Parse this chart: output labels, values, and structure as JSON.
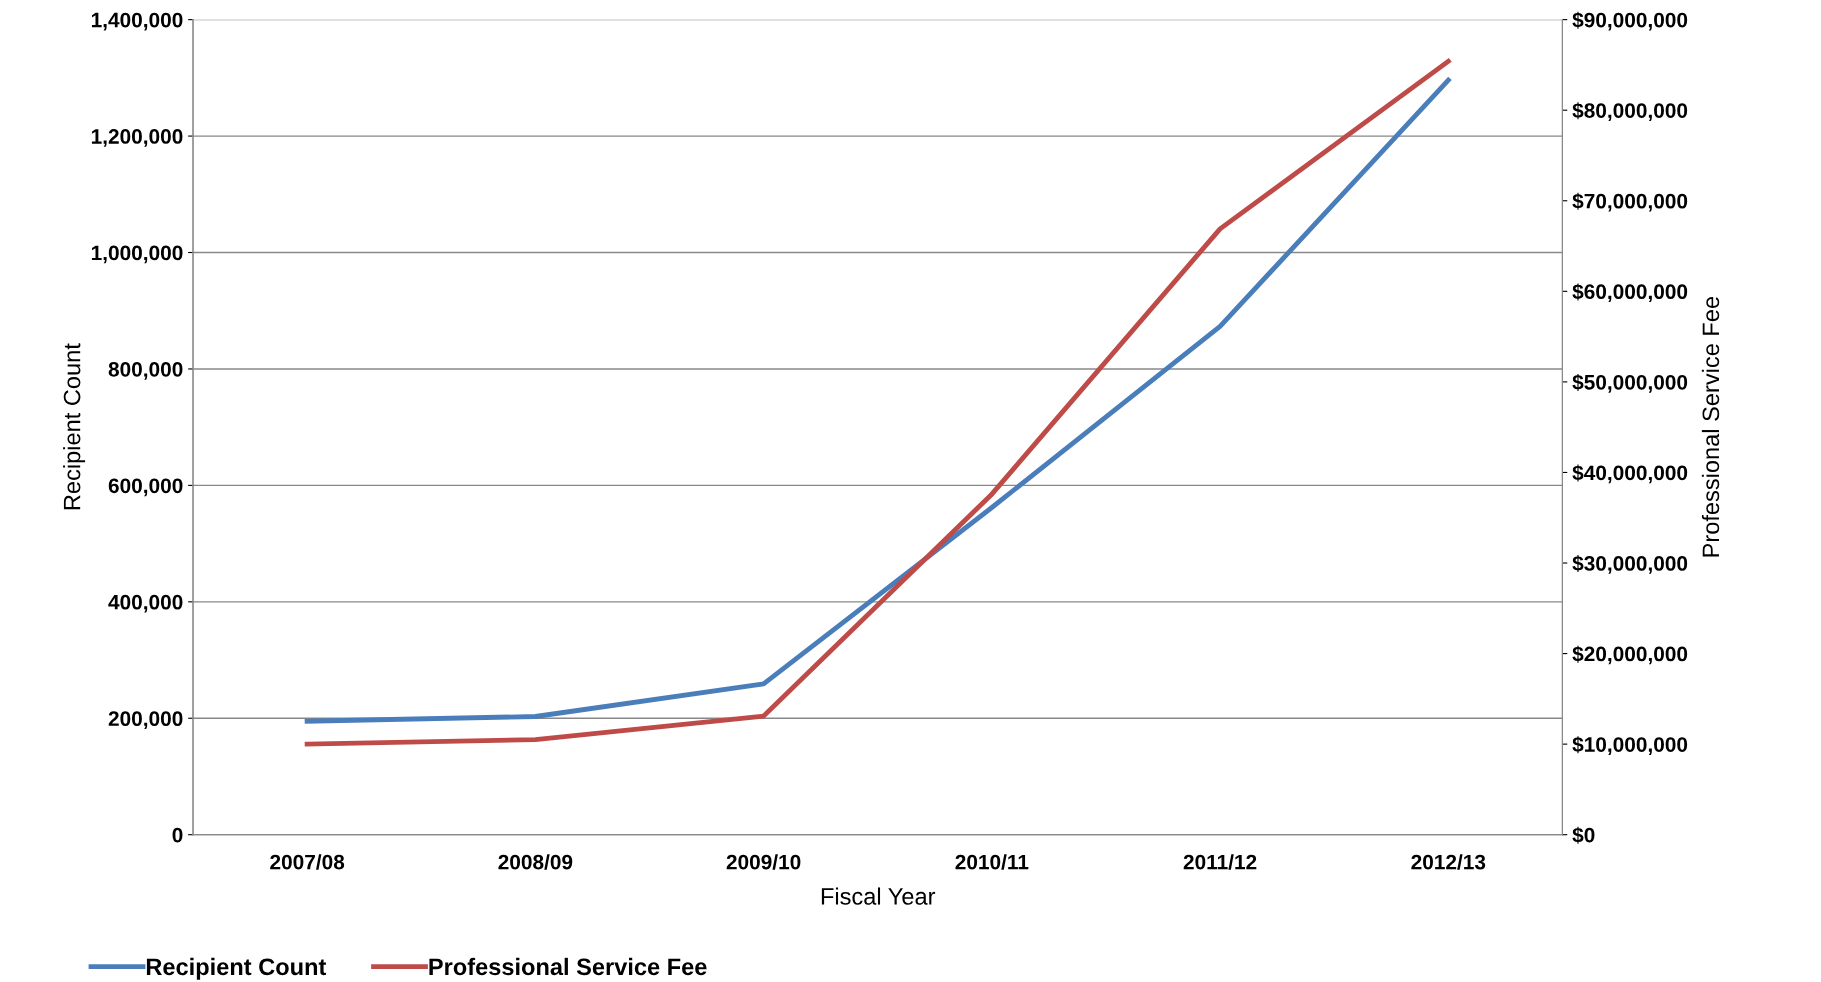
{
  "chart_data": {
    "type": "line",
    "xlabel": "Fiscal Year",
    "ylabel": "Recipient Count",
    "y2label": "Professional Service Fee",
    "categories": [
      "2007/08",
      "2008/09",
      "2009/10",
      "2010/11",
      "2011/12",
      "2012/13"
    ],
    "series": [
      {
        "name": "Recipient Count",
        "color": "#4a7ebb",
        "values": [
          195000,
          203000,
          259000,
          562000,
          873000,
          1296000
        ]
      },
      {
        "name": "Professional Service Fee",
        "color": "#be4b48",
        "axis": "y2",
        "values": [
          10000000,
          10500000,
          13100000,
          37600000,
          66900000,
          85400000
        ]
      }
    ],
    "ylim": [
      0,
      1400000
    ],
    "yticks": [
      {
        "value": 0,
        "label": "0"
      },
      {
        "value": 200000,
        "label": "200,000"
      },
      {
        "value": 400000,
        "label": "400,000"
      },
      {
        "value": 600000,
        "label": "600,000"
      },
      {
        "value": 800000,
        "label": "800,000"
      },
      {
        "value": 1000000,
        "label": "1,000,000"
      },
      {
        "value": 1200000,
        "label": "1,200,000"
      },
      {
        "value": 1400000,
        "label": "1,400,000"
      }
    ],
    "y2lim": [
      0,
      90000000
    ],
    "y2ticks": [
      {
        "value": 0,
        "label": "$0"
      },
      {
        "value": 10000000,
        "label": "$10,000,000"
      },
      {
        "value": 20000000,
        "label": "$20,000,000"
      },
      {
        "value": 30000000,
        "label": "$30,000,000"
      },
      {
        "value": 40000000,
        "label": "$40,000,000"
      },
      {
        "value": 50000000,
        "label": "$50,000,000"
      },
      {
        "value": 60000000,
        "label": "$60,000,000"
      },
      {
        "value": 70000000,
        "label": "$70,000,000"
      },
      {
        "value": 80000000,
        "label": "$80,000,000"
      },
      {
        "value": 90000000,
        "label": "$90,000,000"
      }
    ],
    "grid": "y",
    "legend": "bottom left",
    "marker": "none",
    "line_style": "solid"
  }
}
